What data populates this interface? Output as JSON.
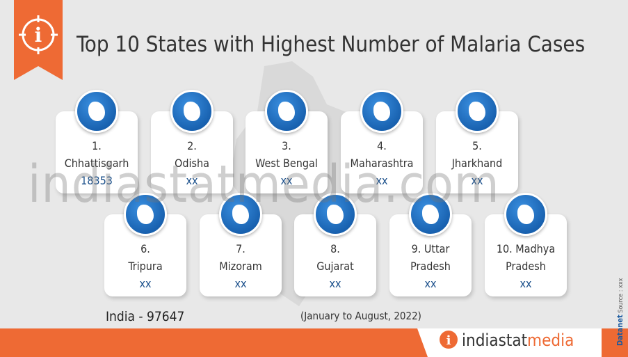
{
  "header": {
    "title": "Top 10 States with Highest Number of Malaria Cases"
  },
  "watermark": "indiastatmedia.com",
  "cards": [
    {
      "rank": "1.",
      "name": "Chhattisgarh",
      "value": 18353
    },
    {
      "rank": "2.",
      "name": "Odisha",
      "value": "xx"
    },
    {
      "rank": "3.",
      "name": "West Bengal",
      "value": "xx"
    },
    {
      "rank": "4.",
      "name": "Maharashtra",
      "value": "xx"
    },
    {
      "rank": "5.",
      "name": "Jharkhand",
      "value": "xx"
    },
    {
      "rank": "6.",
      "name": "Tripura",
      "value": "xx"
    },
    {
      "rank": "7.",
      "name": "Mizoram",
      "value": "xx"
    },
    {
      "rank": "8.",
      "name": "Gujarat",
      "value": "xx"
    },
    {
      "rank": "9. Uttar",
      "name": "Pradesh",
      "value": "xx"
    },
    {
      "rank": "10. Madhya",
      "name": "Pradesh",
      "value": "xx"
    }
  ],
  "footer": {
    "total": "India - 97647",
    "period": "(January to August, 2022)",
    "brand": "Datanet",
    "source": "Source : xxx",
    "logo": [
      "indiastat",
      "media"
    ]
  }
}
